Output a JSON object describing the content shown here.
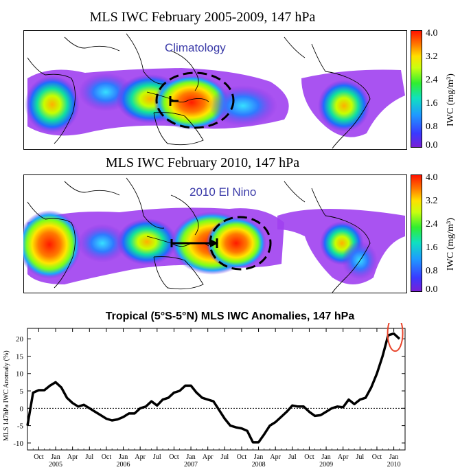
{
  "maps": [
    {
      "title": "MLS IWC  February 2005-2009,  147 hPa",
      "label": "Climatology"
    },
    {
      "title": "MLS IWC  February 2010,  147 hPa",
      "label": "2010 El Nino"
    }
  ],
  "colorbar": {
    "ticks": [
      "4.0",
      "3.2",
      "2.4",
      "1.6",
      "0.8",
      "0.0"
    ],
    "label": "IWC (mg/m³)"
  },
  "chart_data": {
    "type": "line",
    "title": "Tropical (5°S-5°N) MLS IWC Anomalies, 147 hPa",
    "ylabel": "MLS 147hPa  IWC Anomaly (%)",
    "xlabel": "",
    "ylim": [
      -12,
      23
    ],
    "yticks": [
      -10,
      -5,
      0,
      5,
      10,
      15,
      20
    ],
    "x_range": [
      "2004-08",
      "2010-03"
    ],
    "month_ticks": [
      "Oct",
      "Jan",
      "Apr",
      "Jul",
      "Oct",
      "Jan",
      "Apr",
      "Jul",
      "Oct",
      "Jan",
      "Apr",
      "Jul",
      "Oct",
      "Jan",
      "Apr",
      "Jul",
      "Oct",
      "Jan",
      "Apr",
      "Jul",
      "Oct",
      "Jan"
    ],
    "year_labels": [
      "2005",
      "2006",
      "2007",
      "2008",
      "2009",
      "2010"
    ],
    "zero_line": "dotted",
    "series": [
      {
        "color": "#000000",
        "x": [
          "2004-08",
          "2004-09",
          "2004-10",
          "2004-11",
          "2004-12",
          "2005-01",
          "2005-02",
          "2005-03",
          "2005-04",
          "2005-05",
          "2005-06",
          "2005-07",
          "2005-08",
          "2005-09",
          "2005-10",
          "2005-11",
          "2005-12",
          "2006-01",
          "2006-02",
          "2006-03",
          "2006-04",
          "2006-05",
          "2006-06",
          "2006-07",
          "2006-08",
          "2006-09",
          "2006-10",
          "2006-11",
          "2006-12",
          "2007-01",
          "2007-02",
          "2007-03",
          "2007-04",
          "2007-05",
          "2007-06",
          "2007-07",
          "2007-08",
          "2007-09",
          "2007-10",
          "2007-11",
          "2007-12",
          "2008-01",
          "2008-02",
          "2008-03",
          "2008-04",
          "2008-05",
          "2008-06",
          "2008-07",
          "2008-08",
          "2008-09",
          "2008-10",
          "2008-11",
          "2008-12",
          "2009-01",
          "2009-02",
          "2009-03",
          "2009-04",
          "2009-05",
          "2009-06",
          "2009-07",
          "2009-08",
          "2009-09",
          "2009-10",
          "2009-11",
          "2009-12",
          "2010-01",
          "2010-02"
        ],
        "values": [
          -5,
          4.5,
          5.2,
          5.2,
          6.5,
          7.5,
          6,
          3,
          1.5,
          0.5,
          1,
          0,
          -1,
          -2,
          -3,
          -3.5,
          -3.2,
          -2.5,
          -1.5,
          -1.5,
          0,
          0.5,
          2,
          0.8,
          2.5,
          3,
          4.5,
          5,
          6.5,
          6.5,
          4.5,
          3,
          2.5,
          2,
          -0.5,
          -3,
          -5,
          -5.5,
          -5.8,
          -6.5,
          -9.8,
          -9.8,
          -7.5,
          -5,
          -4,
          -2.5,
          -1,
          0.8,
          0.5,
          0.5,
          -1,
          -2.2,
          -2,
          -1,
          0,
          0.5,
          0.3,
          2.5,
          1.2,
          2.5,
          3,
          6,
          10,
          15,
          21,
          21.5,
          20
        ]
      }
    ],
    "highlight": "last-point-ellipse"
  },
  "colors": {
    "text_blue": "#3a3aa8",
    "highlight_red": "#e8452c"
  }
}
